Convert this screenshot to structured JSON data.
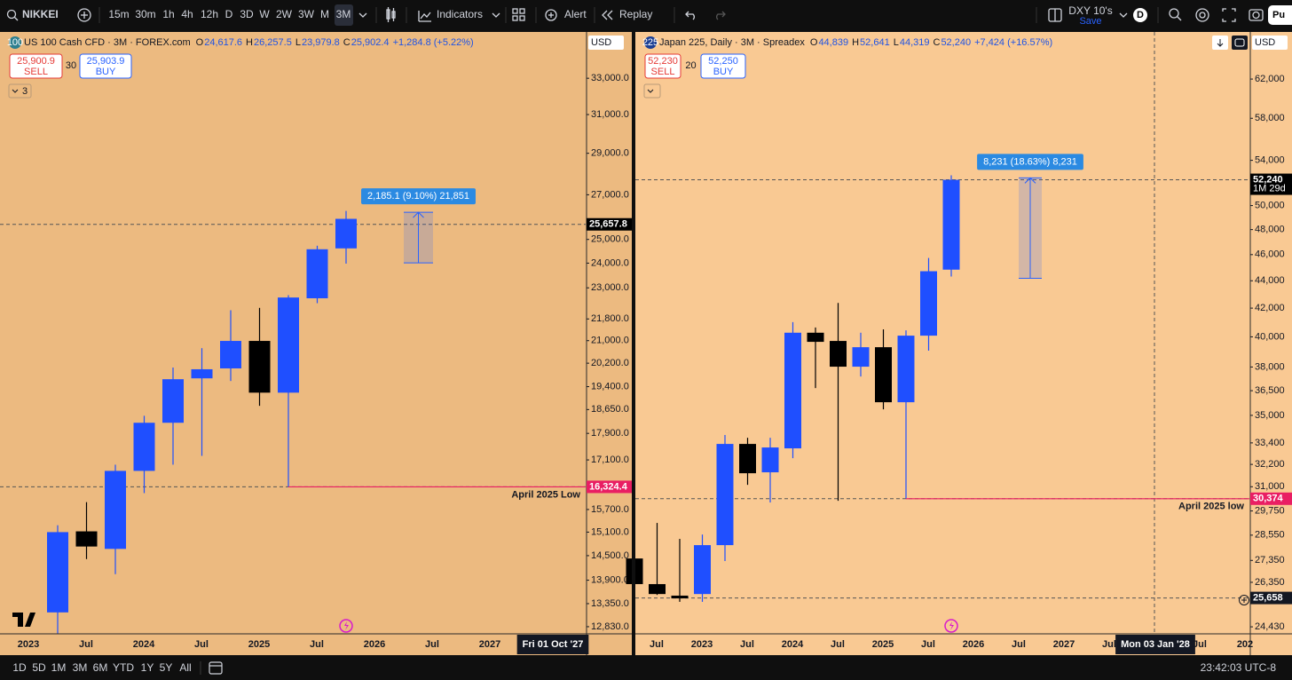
{
  "toolbar": {
    "symbol": "NIKKEI",
    "intervals": [
      "15m",
      "30m",
      "1h",
      "4h",
      "12h",
      "D",
      "3D",
      "W",
      "2W",
      "3W",
      "M",
      "3M"
    ],
    "indicators": "Indicators",
    "alert": "Alert",
    "replay": "Replay",
    "layout_name": "DXY 10's",
    "save": "Save",
    "avatar": "D",
    "publish": "Pu"
  },
  "panels": [
    {
      "badge": "100",
      "title": "US 100 Cash CFD · 3M · FOREX.com",
      "ohlc_labels": [
        "O",
        "H",
        "L",
        "C"
      ],
      "ohlc": [
        "24,617.6",
        "26,257.5",
        "23,979.8",
        "25,902.4"
      ],
      "change": "+1,284.8 (+5.22%)",
      "sell": {
        "price": "25,900.9",
        "label": "SELL"
      },
      "spread": "30",
      "buy": {
        "price": "25,903.9",
        "label": "BUY"
      },
      "collapsed_count": "3",
      "currency": "USD",
      "chart": {
        "type": "candlestick",
        "log_scale": true,
        "ylim": [
          12673,
          35740
        ],
        "up_color": "#1f4fff",
        "down_color": "#000000",
        "yticks": [
          {
            "value": 33000,
            "label": "33,000.0"
          },
          {
            "value": 31000,
            "label": "31,000.0"
          },
          {
            "value": 29000,
            "label": "29,000.0"
          },
          {
            "value": 27000,
            "label": "27,000.0"
          },
          {
            "value": 25000,
            "label": "25,000.0"
          },
          {
            "value": 24000,
            "label": "24,000.0"
          },
          {
            "value": 23000,
            "label": "23,000.0"
          },
          {
            "value": 21800,
            "label": "21,800.0"
          },
          {
            "value": 21000,
            "label": "21,000.0"
          },
          {
            "value": 20200,
            "label": "20,200.0"
          },
          {
            "value": 19400,
            "label": "19,400.0"
          },
          {
            "value": 18650,
            "label": "18,650.0"
          },
          {
            "value": 17900,
            "label": "17,900.0"
          },
          {
            "value": 17100,
            "label": "17,100.0"
          },
          {
            "value": 15700,
            "label": "15,700.0"
          },
          {
            "value": 15100,
            "label": "15,100.0"
          },
          {
            "value": 14500,
            "label": "14,500.0"
          },
          {
            "value": 13900,
            "label": "13,900.0"
          },
          {
            "value": 13350,
            "label": "13,350.0"
          },
          {
            "value": 12830,
            "label": "12,830.0"
          }
        ],
        "x_labels": [
          "2023",
          "Jul",
          "2024",
          "Jul",
          "2025",
          "Jul",
          "2026",
          "Jul",
          "2027",
          null
        ],
        "crosshair_x_label": "Fri 01 Oct '27",
        "candles": [
          {
            "o": 13150,
            "h": 15280,
            "l": 12670,
            "c": 15100
          },
          {
            "o": 15120,
            "h": 15900,
            "l": 14415,
            "c": 14730
          },
          {
            "o": 14670,
            "h": 16960,
            "l": 14045,
            "c": 16780
          },
          {
            "o": 16780,
            "h": 18450,
            "l": 16150,
            "c": 18230
          },
          {
            "o": 18230,
            "h": 20050,
            "l": 16960,
            "c": 19650
          },
          {
            "o": 19680,
            "h": 20730,
            "l": 17220,
            "c": 19990
          },
          {
            "o": 20020,
            "h": 22130,
            "l": 19590,
            "c": 20990
          },
          {
            "o": 20990,
            "h": 22220,
            "l": 18770,
            "c": 19200
          },
          {
            "o": 19200,
            "h": 22710,
            "l": 16324.4,
            "c": 22620
          },
          {
            "o": 22590,
            "h": 24730,
            "l": 22400,
            "c": 24580
          },
          {
            "o": 24617.6,
            "h": 26257.5,
            "l": 23979.8,
            "c": 25902.4
          }
        ],
        "price_tags": [
          {
            "value": 25657.8,
            "label": "25,657.8",
            "color": "#000000"
          },
          {
            "value": 16324.4,
            "label": "16,324.4",
            "color": "#e91e63"
          }
        ],
        "hline": {
          "value": 16324.4,
          "text": "April 2025 Low",
          "color": "#e91e63"
        },
        "measure": {
          "from": 24012,
          "to": 26197.1,
          "label": "2,185.1 (9.10%) 21,851"
        }
      }
    },
    {
      "badge": "225",
      "title": "Japan 225, Daily · 3M · Spreadex",
      "ohlc_labels": [
        "O",
        "H",
        "L",
        "C"
      ],
      "ohlc": [
        "44,839",
        "52,641",
        "44,319",
        "52,240"
      ],
      "change": "+7,424 (+16.57%)",
      "sell": {
        "price": "52,230",
        "label": "SELL"
      },
      "spread": "20",
      "buy": {
        "price": "52,250",
        "label": "BUY"
      },
      "currency": "USD",
      "chart": {
        "type": "candlestick",
        "log_scale": true,
        "ylim": [
          24140,
          67170
        ],
        "up_color": "#1f4fff",
        "down_color": "#000000",
        "yticks": [
          {
            "value": 62000,
            "label": "62,000"
          },
          {
            "value": 58000,
            "label": "58,000"
          },
          {
            "value": 54000,
            "label": "54,000"
          },
          {
            "value": 50000,
            "label": "50,000"
          },
          {
            "value": 48000,
            "label": "48,000"
          },
          {
            "value": 46000,
            "label": "46,000"
          },
          {
            "value": 44000,
            "label": "44,000"
          },
          {
            "value": 42000,
            "label": "42,000"
          },
          {
            "value": 40000,
            "label": "40,000"
          },
          {
            "value": 38000,
            "label": "38,000"
          },
          {
            "value": 36500,
            "label": "36,500"
          },
          {
            "value": 35000,
            "label": "35,000"
          },
          {
            "value": 33400,
            "label": "33,400"
          },
          {
            "value": 32200,
            "label": "32,200"
          },
          {
            "value": 31000,
            "label": "31,000"
          },
          {
            "value": 29750,
            "label": "29,750"
          },
          {
            "value": 28550,
            "label": "28,550"
          },
          {
            "value": 27350,
            "label": "27,350"
          },
          {
            "value": 26350,
            "label": "26,350"
          },
          {
            "value": 24430,
            "label": "24,430"
          }
        ],
        "x_labels": [
          "Jul",
          "2023",
          "Jul",
          "2024",
          "Jul",
          "2025",
          "Jul",
          "2026",
          "Jul",
          "2027",
          "Jul",
          null,
          "Jul",
          "202"
        ],
        "crosshair_x_label": "Mon 03 Jan '28",
        "candles": [
          {
            "o": 27440,
            "h": 27815,
            "l": 25950,
            "c": 26270
          },
          {
            "o": 26270,
            "h": 29150,
            "l": 25790,
            "c": 25830
          },
          {
            "o": 25760,
            "h": 28370,
            "l": 25490,
            "c": 25640
          },
          {
            "o": 25830,
            "h": 28580,
            "l": 25490,
            "c": 28070
          },
          {
            "o": 28070,
            "h": 33850,
            "l": 27320,
            "c": 33340
          },
          {
            "o": 33340,
            "h": 33690,
            "l": 31100,
            "c": 31720
          },
          {
            "o": 31770,
            "h": 33690,
            "l": 30180,
            "c": 33140
          },
          {
            "o": 33090,
            "h": 41010,
            "l": 32540,
            "c": 40280
          },
          {
            "o": 40280,
            "h": 40640,
            "l": 36660,
            "c": 39660
          },
          {
            "o": 39720,
            "h": 42370,
            "l": 30270,
            "c": 38020
          },
          {
            "o": 38020,
            "h": 40280,
            "l": 37390,
            "c": 39300
          },
          {
            "o": 39300,
            "h": 40510,
            "l": 35360,
            "c": 35790
          },
          {
            "o": 35790,
            "h": 40440,
            "l": 30374,
            "c": 40080
          },
          {
            "o": 40080,
            "h": 45740,
            "l": 39070,
            "c": 44720
          },
          {
            "o": 44839,
            "h": 52641,
            "l": 44319,
            "c": 52240
          }
        ],
        "price_tags": [
          {
            "value": 52240,
            "label": "52,240",
            "sub": "1M 29d",
            "color": "#000000"
          },
          {
            "value": 30374,
            "label": "30,374",
            "color": "#e91e63"
          },
          {
            "value": 25658,
            "label": "25,658",
            "color": "#131722"
          }
        ],
        "hline": {
          "value": 30374,
          "text": "April 2025 low",
          "color": "#e91e63"
        },
        "measure": {
          "from": 44181,
          "to": 52412,
          "label": "8,231 (18.63%) 8,231"
        }
      }
    }
  ],
  "bottom": {
    "ranges": [
      "1D",
      "5D",
      "1M",
      "3M",
      "6M",
      "YTD",
      "1Y",
      "5Y",
      "All"
    ],
    "clock": "23:42:03 UTC-8"
  }
}
